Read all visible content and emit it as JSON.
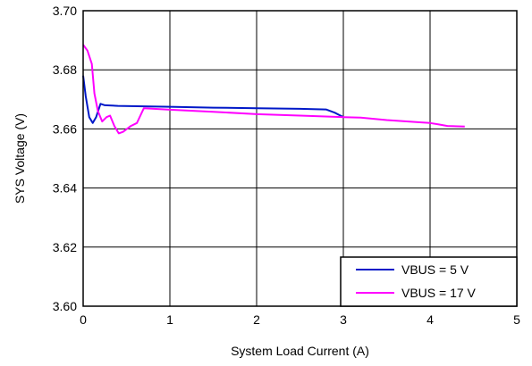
{
  "chart_data": {
    "type": "line",
    "xlabel": "System Load Current (A)",
    "ylabel": "SYS Voltage (V)",
    "xlim": [
      0,
      5
    ],
    "ylim": [
      3.6,
      3.7
    ],
    "x_ticks": [
      "0",
      "1",
      "2",
      "3",
      "4",
      "5"
    ],
    "y_ticks": [
      "3.60",
      "3.62",
      "3.64",
      "3.66",
      "3.68",
      "3.70"
    ],
    "grid": true,
    "legend_position": "bottom-right",
    "series": [
      {
        "name": "VBUS = 5 V",
        "color": "#0018c8",
        "points": [
          [
            0.0,
            3.678
          ],
          [
            0.03,
            3.671
          ],
          [
            0.07,
            3.664
          ],
          [
            0.11,
            3.662
          ],
          [
            0.15,
            3.664
          ],
          [
            0.2,
            3.6685
          ],
          [
            0.25,
            3.668
          ],
          [
            0.4,
            3.6678
          ],
          [
            1.0,
            3.6675
          ],
          [
            1.5,
            3.6672
          ],
          [
            2.0,
            3.667
          ],
          [
            2.5,
            3.6668
          ],
          [
            2.8,
            3.6666
          ],
          [
            2.9,
            3.6655
          ],
          [
            3.0,
            3.664
          ]
        ]
      },
      {
        "name": "VBUS = 17 V",
        "color": "#ff00ff",
        "points": [
          [
            0.0,
            3.6885
          ],
          [
            0.05,
            3.6865
          ],
          [
            0.1,
            3.682
          ],
          [
            0.13,
            3.672
          ],
          [
            0.17,
            3.666
          ],
          [
            0.22,
            3.6625
          ],
          [
            0.27,
            3.664
          ],
          [
            0.31,
            3.6645
          ],
          [
            0.36,
            3.661
          ],
          [
            0.41,
            3.6585
          ],
          [
            0.46,
            3.659
          ],
          [
            0.55,
            3.661
          ],
          [
            0.62,
            3.662
          ],
          [
            0.7,
            3.667
          ],
          [
            1.0,
            3.6665
          ],
          [
            1.5,
            3.6658
          ],
          [
            2.0,
            3.665
          ],
          [
            2.5,
            3.6645
          ],
          [
            3.0,
            3.664
          ],
          [
            3.2,
            3.6638
          ],
          [
            3.5,
            3.663
          ],
          [
            3.9,
            3.6622
          ],
          [
            4.0,
            3.662
          ],
          [
            4.1,
            3.6615
          ],
          [
            4.2,
            3.661
          ],
          [
            4.4,
            3.6608
          ]
        ]
      }
    ]
  }
}
